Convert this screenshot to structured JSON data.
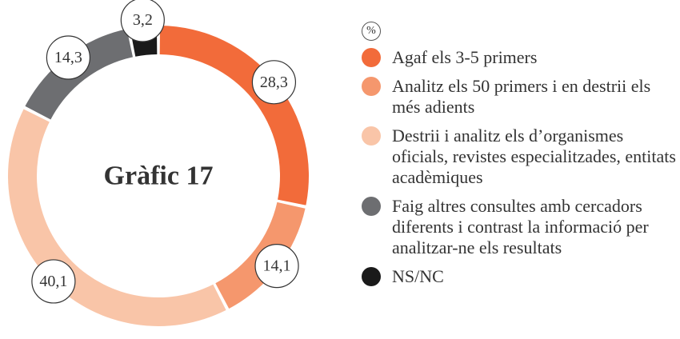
{
  "chart_data": {
    "type": "pie",
    "title": "Gràfic 17",
    "unit": "%",
    "categories": [
      "Agaf els 3-5 primers",
      "Analitz els 50 primers i en destrii els més adients",
      "Destrii i analitz els d’organismes oficials, revistes especialitzades, entitats acadèmiques",
      "Faig altres consultes amb cercadors diferents i contrast la informació per analitzar-ne els resultats",
      "NS/NC"
    ],
    "values": [
      28.3,
      14.1,
      40.1,
      14.3,
      3.2
    ],
    "value_labels": [
      "28,3",
      "14,1",
      "40,1",
      "14,3",
      "3,2"
    ],
    "colors": [
      "#f26b3a",
      "#f5976d",
      "#f9c5a8",
      "#6d6e71",
      "#1a1a1a"
    ]
  }
}
